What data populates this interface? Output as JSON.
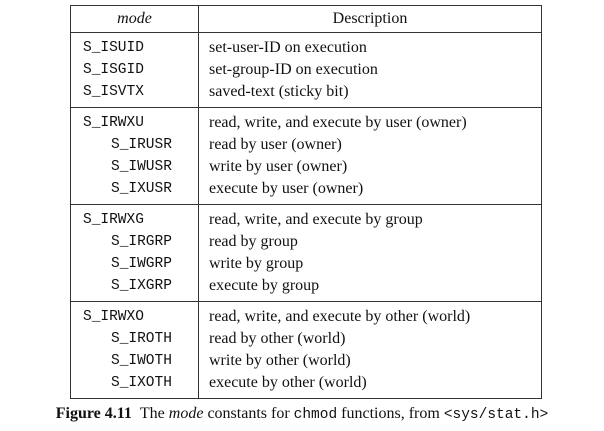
{
  "table": {
    "headers": {
      "mode": "mode",
      "description": "Description"
    },
    "groups": [
      {
        "rows": [
          {
            "constant": "S_ISUID",
            "description": "set-user-ID on execution",
            "indent": false
          },
          {
            "constant": "S_ISGID",
            "description": "set-group-ID on execution",
            "indent": false
          },
          {
            "constant": "S_ISVTX",
            "description": "saved-text (sticky bit)",
            "indent": false
          }
        ]
      },
      {
        "rows": [
          {
            "constant": "S_IRWXU",
            "description": "read, write, and execute by user (owner)",
            "indent": false
          },
          {
            "constant": "S_IRUSR",
            "description": "read by user (owner)",
            "indent": true
          },
          {
            "constant": "S_IWUSR",
            "description": "write by user (owner)",
            "indent": true
          },
          {
            "constant": "S_IXUSR",
            "description": "execute by user (owner)",
            "indent": true
          }
        ]
      },
      {
        "rows": [
          {
            "constant": "S_IRWXG",
            "description": "read, write, and execute by group",
            "indent": false
          },
          {
            "constant": "S_IRGRP",
            "description": "read by group",
            "indent": true
          },
          {
            "constant": "S_IWGRP",
            "description": "write by group",
            "indent": true
          },
          {
            "constant": "S_IXGRP",
            "description": "execute by group",
            "indent": true
          }
        ]
      },
      {
        "rows": [
          {
            "constant": "S_IRWXO",
            "description": "read, write, and execute by other (world)",
            "indent": false
          },
          {
            "constant": "S_IROTH",
            "description": "read by other (world)",
            "indent": true
          },
          {
            "constant": "S_IWOTH",
            "description": "write by other (world)",
            "indent": true
          },
          {
            "constant": "S_IXOTH",
            "description": "execute by other (world)",
            "indent": true
          }
        ]
      }
    ]
  },
  "caption": {
    "label": "Figure 4.11",
    "text_before": "The ",
    "italic": "mode",
    "text_middle": " constants for ",
    "code1": "chmod",
    "text_after": " functions, from ",
    "code2": "<sys/stat.h>"
  }
}
